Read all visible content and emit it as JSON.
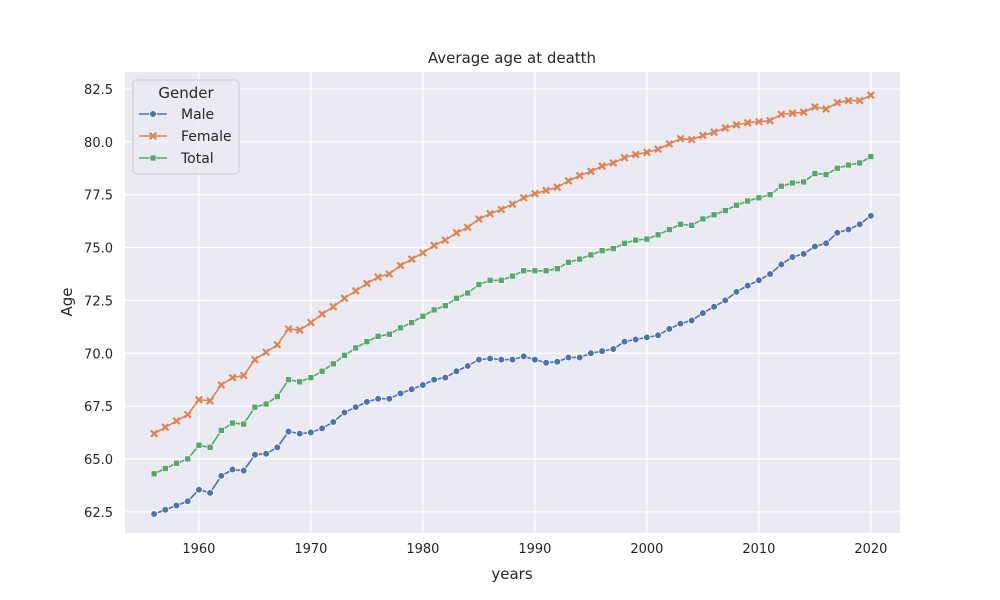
{
  "chart_data": {
    "type": "line",
    "title": "Average age at deatth",
    "xlabel": "years",
    "ylabel": "Age",
    "xlim": [
      1953.4,
      2022.6
    ],
    "ylim": [
      61.5,
      83.3
    ],
    "xticks": [
      "1960",
      "1970",
      "1980",
      "1990",
      "2000",
      "2010",
      "2020"
    ],
    "yticks": [
      "62.5",
      "65.0",
      "67.5",
      "70.0",
      "72.5",
      "75.0",
      "77.5",
      "80.0",
      "82.5"
    ],
    "grid": true,
    "legend": {
      "title": "Gender",
      "placement": "upper-left"
    },
    "x": [
      1956,
      1957,
      1958,
      1959,
      1960,
      1961,
      1962,
      1963,
      1964,
      1965,
      1966,
      1967,
      1968,
      1969,
      1970,
      1971,
      1972,
      1973,
      1974,
      1975,
      1976,
      1977,
      1978,
      1979,
      1980,
      1981,
      1982,
      1983,
      1984,
      1985,
      1986,
      1987,
      1988,
      1989,
      1990,
      1991,
      1992,
      1993,
      1994,
      1995,
      1996,
      1997,
      1998,
      1999,
      2000,
      2001,
      2002,
      2003,
      2004,
      2005,
      2006,
      2007,
      2008,
      2009,
      2010,
      2011,
      2012,
      2013,
      2014,
      2015,
      2016,
      2017,
      2018,
      2019,
      2020
    ],
    "series": [
      {
        "name": "Male",
        "color": "#4c72b0",
        "marker": "circle",
        "values": [
          62.4,
          62.6,
          62.8,
          63.0,
          63.55,
          63.4,
          64.2,
          64.5,
          64.45,
          65.2,
          65.25,
          65.55,
          66.3,
          66.2,
          66.25,
          66.45,
          66.75,
          67.2,
          67.45,
          67.7,
          67.85,
          67.85,
          68.1,
          68.3,
          68.5,
          68.75,
          68.85,
          69.15,
          69.4,
          69.7,
          69.75,
          69.7,
          69.7,
          69.85,
          69.7,
          69.55,
          69.6,
          69.8,
          69.8,
          70.0,
          70.1,
          70.2,
          70.55,
          70.65,
          70.75,
          70.85,
          71.15,
          71.4,
          71.55,
          71.9,
          72.2,
          72.5,
          72.9,
          73.2,
          73.45,
          73.75,
          74.2,
          74.55,
          74.7,
          75.05,
          75.2,
          75.7,
          75.85,
          76.1,
          76.5
        ]
      },
      {
        "name": "Female",
        "color": "#dd8452",
        "marker": "x",
        "values": [
          66.2,
          66.5,
          66.8,
          67.1,
          67.8,
          67.75,
          68.5,
          68.85,
          68.95,
          69.7,
          70.05,
          70.4,
          71.15,
          71.1,
          71.45,
          71.85,
          72.2,
          72.6,
          72.95,
          73.3,
          73.6,
          73.75,
          74.15,
          74.45,
          74.75,
          75.1,
          75.35,
          75.7,
          75.95,
          76.35,
          76.6,
          76.8,
          77.05,
          77.35,
          77.55,
          77.7,
          77.85,
          78.15,
          78.4,
          78.6,
          78.85,
          79.0,
          79.25,
          79.4,
          79.5,
          79.65,
          79.9,
          80.15,
          80.1,
          80.3,
          80.45,
          80.65,
          80.8,
          80.9,
          80.95,
          81.0,
          81.3,
          81.35,
          81.4,
          81.65,
          81.55,
          81.85,
          81.95,
          81.95,
          82.2
        ]
      },
      {
        "name": "Total",
        "color": "#55a868",
        "marker": "square",
        "values": [
          64.3,
          64.55,
          64.8,
          65.0,
          65.65,
          65.55,
          66.35,
          66.7,
          66.65,
          67.45,
          67.6,
          67.95,
          68.75,
          68.65,
          68.85,
          69.15,
          69.5,
          69.9,
          70.25,
          70.55,
          70.8,
          70.9,
          71.2,
          71.45,
          71.75,
          72.05,
          72.25,
          72.6,
          72.85,
          73.25,
          73.45,
          73.45,
          73.65,
          73.9,
          73.9,
          73.9,
          74.0,
          74.3,
          74.45,
          74.65,
          74.85,
          74.95,
          75.2,
          75.35,
          75.4,
          75.6,
          75.85,
          76.1,
          76.05,
          76.35,
          76.55,
          76.75,
          77.0,
          77.2,
          77.35,
          77.5,
          77.9,
          78.05,
          78.1,
          78.5,
          78.45,
          78.75,
          78.9,
          79.0,
          79.3
        ]
      }
    ]
  }
}
